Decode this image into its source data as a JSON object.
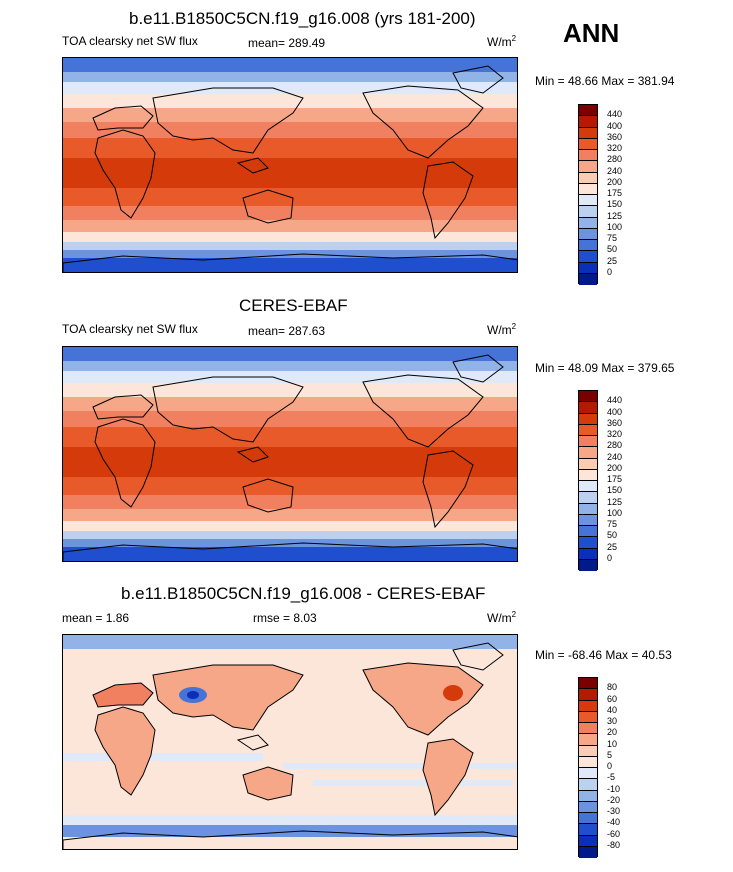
{
  "season": "ANN",
  "panels": [
    {
      "title": "b.e11.B1850C5CN.f19_g16.008 (yrs 181-200)",
      "left_label": "TOA clearsky net SW flux",
      "mean_label": "mean= 289.49",
      "units_base": "W/m",
      "units_exp": "2",
      "minmax": "Min =  48.66 Max = 381.94",
      "levels": [
        "440",
        "400",
        "360",
        "320",
        "280",
        "240",
        "200",
        "175",
        "150",
        "125",
        "100",
        "75",
        "50",
        "25",
        "0"
      ]
    },
    {
      "title": "CERES-EBAF",
      "left_label": "TOA clearsky net SW flux",
      "mean_label": "mean= 287.63",
      "units_base": "W/m",
      "units_exp": "2",
      "minmax": "Min =  48.09 Max = 379.65",
      "levels": [
        "440",
        "400",
        "360",
        "320",
        "280",
        "240",
        "200",
        "175",
        "150",
        "125",
        "100",
        "75",
        "50",
        "25",
        "0"
      ]
    },
    {
      "title": "b.e11.B1850C5CN.f19_g16.008 - CERES-EBAF",
      "left_label": "mean =   1.86",
      "rmse_label": "rmse =   8.03",
      "units_base": "W/m",
      "units_exp": "2",
      "minmax": "Min = -68.46 Max =  40.53",
      "levels": [
        "80",
        "60",
        "40",
        "30",
        "20",
        "10",
        "5",
        "0",
        "-5",
        "-10",
        "-20",
        "-30",
        "-40",
        "-60",
        "-80"
      ]
    }
  ],
  "colors": {
    "field_scale": [
      "#7a0000",
      "#b31a00",
      "#d43a0a",
      "#e85a2a",
      "#f08060",
      "#f5a788",
      "#f8cdb4",
      "#fbe6d9",
      "#dfe9f7",
      "#bcd1f0",
      "#92b3e8",
      "#6b93e0",
      "#4573d8",
      "#1f4fce",
      "#0a2fb8",
      "#001a8c"
    ],
    "diff_scale": [
      "#7a0000",
      "#b31a00",
      "#d43a0a",
      "#e85a2a",
      "#f08060",
      "#f5a788",
      "#f8cdb4",
      "#fbe6d9",
      "#dfe9f7",
      "#bcd1f0",
      "#92b3e8",
      "#6b93e0",
      "#4573d8",
      "#1f4fce",
      "#0a2fb8",
      "#001a8c"
    ]
  }
}
